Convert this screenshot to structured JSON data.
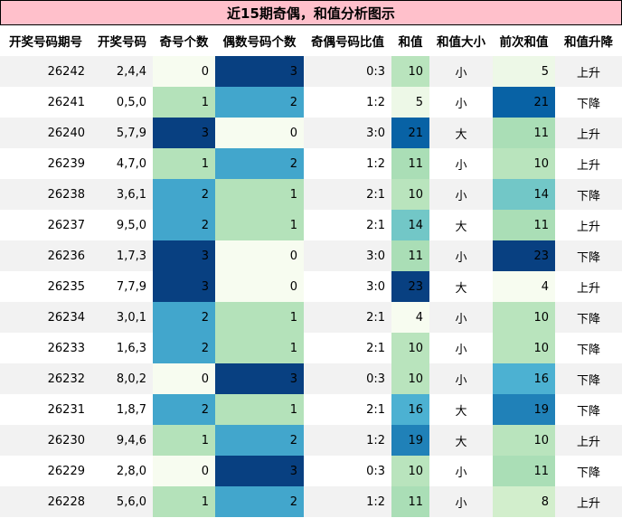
{
  "title": "近15期奇偶，和值分析图示",
  "chart_data": {
    "type": "table",
    "columns": [
      "开奖号码期号",
      "开奖号码",
      "奇号个数",
      "偶数号码个数",
      "奇偶号码比值",
      "和值",
      "和值大小",
      "前次和值",
      "和值升降"
    ],
    "rows": [
      [
        "26242",
        "2,4,4",
        0,
        3,
        "0:3",
        10,
        "小",
        5,
        "上升"
      ],
      [
        "26241",
        "0,5,0",
        1,
        2,
        "1:2",
        5,
        "小",
        21,
        "下降"
      ],
      [
        "26240",
        "5,7,9",
        3,
        0,
        "3:0",
        21,
        "大",
        11,
        "上升"
      ],
      [
        "26239",
        "4,7,0",
        1,
        2,
        "1:2",
        11,
        "小",
        10,
        "上升"
      ],
      [
        "26238",
        "3,6,1",
        2,
        1,
        "2:1",
        10,
        "小",
        14,
        "下降"
      ],
      [
        "26237",
        "9,5,0",
        2,
        1,
        "2:1",
        14,
        "大",
        11,
        "上升"
      ],
      [
        "26236",
        "1,7,3",
        3,
        0,
        "3:0",
        11,
        "小",
        23,
        "下降"
      ],
      [
        "26235",
        "7,7,9",
        3,
        0,
        "3:0",
        23,
        "大",
        4,
        "上升"
      ],
      [
        "26234",
        "3,0,1",
        2,
        1,
        "2:1",
        4,
        "小",
        10,
        "下降"
      ],
      [
        "26233",
        "1,6,3",
        2,
        1,
        "2:1",
        10,
        "小",
        10,
        "下降"
      ],
      [
        "26232",
        "8,0,2",
        0,
        3,
        "0:3",
        10,
        "小",
        16,
        "下降"
      ],
      [
        "26231",
        "1,8,7",
        2,
        1,
        "2:1",
        16,
        "大",
        19,
        "下降"
      ],
      [
        "26230",
        "9,4,6",
        1,
        2,
        "1:2",
        19,
        "大",
        10,
        "上升"
      ],
      [
        "26229",
        "2,8,0",
        0,
        3,
        "0:3",
        10,
        "小",
        11,
        "下降"
      ],
      [
        "26228",
        "5,6,0",
        1,
        2,
        "1:2",
        11,
        "小",
        8,
        "上升"
      ]
    ],
    "heatmap_columns": [
      "奇号个数",
      "偶数号码个数",
      "和值",
      "前次和值"
    ],
    "colormap": "GnBu",
    "stripe_colors": [
      "#f2f2f2",
      "#ffffff"
    ]
  }
}
